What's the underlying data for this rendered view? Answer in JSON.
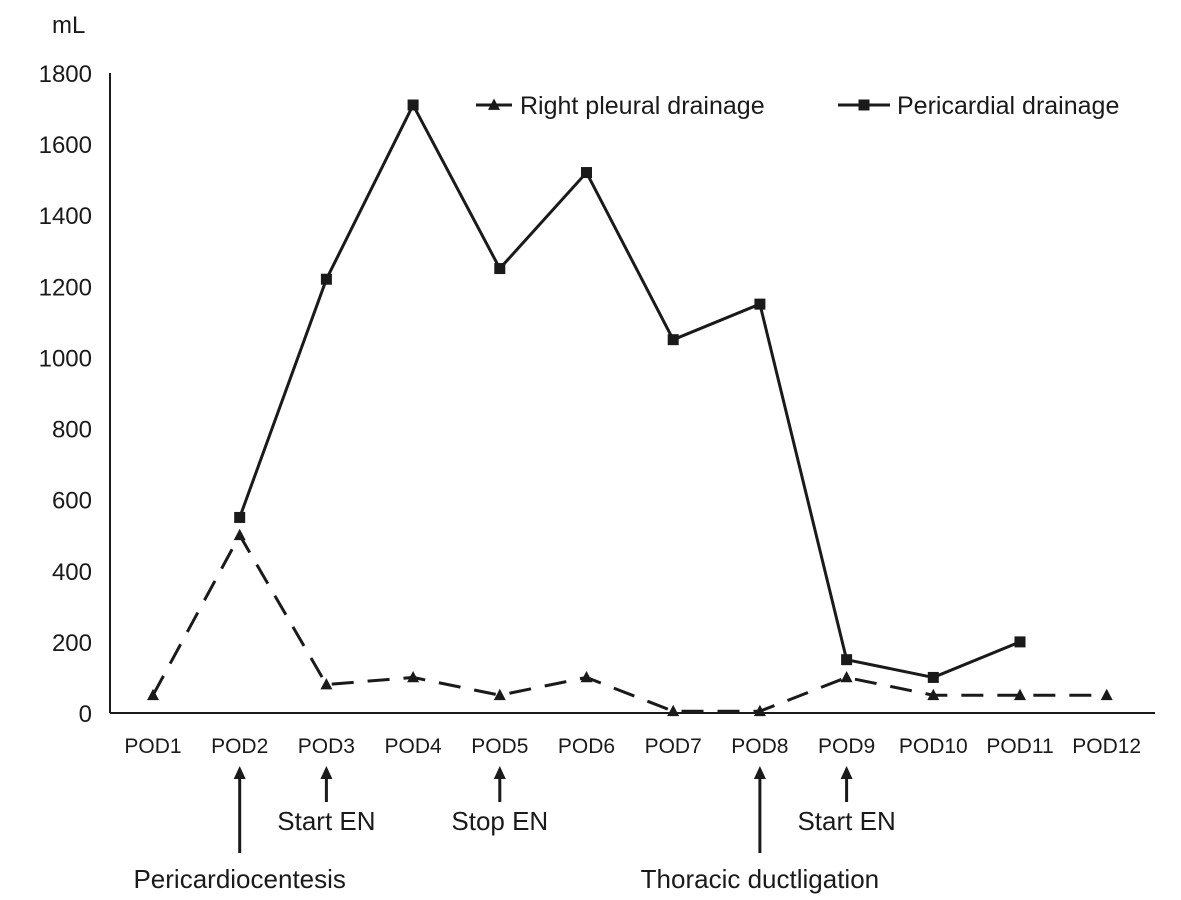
{
  "chart_data": {
    "type": "line",
    "ylabel": "mL",
    "ylim": [
      0,
      1800
    ],
    "yticks": [
      0,
      200,
      400,
      600,
      800,
      1000,
      1200,
      1400,
      1600,
      1800
    ],
    "categories": [
      "POD1",
      "POD2",
      "POD3",
      "POD4",
      "POD5",
      "POD6",
      "POD7",
      "POD8",
      "POD9",
      "POD10",
      "POD11",
      "POD12"
    ],
    "grid": false,
    "legend_position": "top-right",
    "series": [
      {
        "name": "Right pleural drainage",
        "marker": "triangle",
        "line_style": "dashed",
        "values": [
          50,
          500,
          80,
          100,
          50,
          100,
          5,
          5,
          100,
          50,
          50,
          50
        ]
      },
      {
        "name": "Pericardial drainage",
        "marker": "square",
        "line_style": "solid",
        "values": [
          null,
          550,
          1220,
          1710,
          1250,
          1520,
          1050,
          1150,
          150,
          100,
          200,
          null
        ]
      }
    ],
    "annotations": [
      {
        "category": "POD2",
        "text": "Pericardiocentesis",
        "arrow": "long"
      },
      {
        "category": "POD3",
        "text": "Start EN",
        "arrow": "short"
      },
      {
        "category": "POD5",
        "text": "Stop EN",
        "arrow": "short"
      },
      {
        "category": "POD8",
        "text": "Thoracic ductligation",
        "arrow": "long"
      },
      {
        "category": "POD9",
        "text": "Start EN",
        "arrow": "short"
      }
    ]
  }
}
